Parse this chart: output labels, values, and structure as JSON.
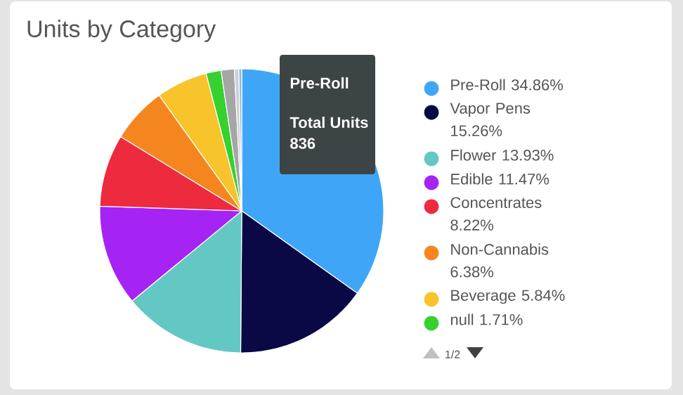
{
  "chart_data": {
    "type": "pie",
    "title": "Units by Category",
    "categories": [
      "Pre-Roll",
      "Vapor Pens",
      "Flower",
      "Edible",
      "Concentrates",
      "Non-Cannabis",
      "Beverage",
      "null",
      null,
      null,
      null
    ],
    "values": [
      34.86,
      15.26,
      13.93,
      11.47,
      8.22,
      6.38,
      5.84,
      1.71,
      1.5,
      0.5,
      0.33
    ],
    "value_labels": [
      "34.86%",
      "15.26%",
      "13.93%",
      "11.47%",
      "8.22%",
      "6.38%",
      "5.84%",
      "1.71%",
      null,
      null,
      null
    ],
    "colors": [
      "#3fa6f7",
      "#0b0846",
      "#63c8c4",
      "#a624f3",
      "#ee2a3e",
      "#f5861f",
      "#f8c42c",
      "#36d12f",
      "#a6a6a6",
      "#cfcfcf",
      "#8fb8ef"
    ],
    "legend": "right",
    "annotations": [
      "Pre-Roll",
      "Total Units",
      "836",
      "1/2"
    ]
  }
}
